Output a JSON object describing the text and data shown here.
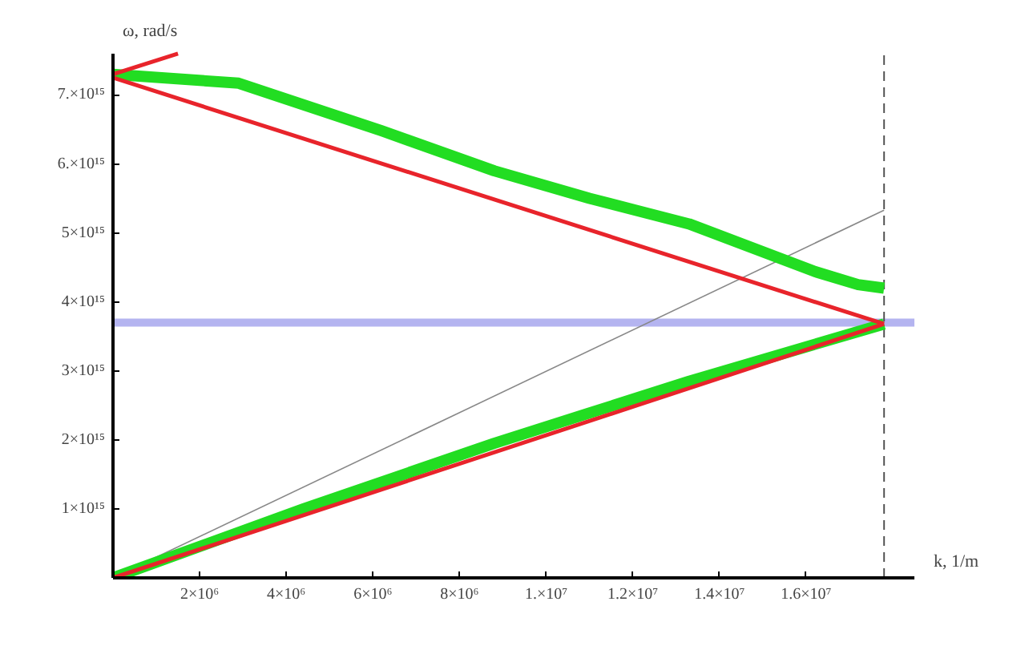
{
  "chart_data": {
    "type": "line",
    "xlabel": "k, 1/m",
    "ylabel": "ω, rad/s",
    "xlim": [
      0,
      18500000
    ],
    "ylim": [
      0,
      7600000000000000.0
    ],
    "xticks": [
      {
        "value": 2000000,
        "label": "2×10⁶"
      },
      {
        "value": 4000000,
        "label": "4×10⁶"
      },
      {
        "value": 6000000,
        "label": "6×10⁶"
      },
      {
        "value": 8000000,
        "label": "8×10⁶"
      },
      {
        "value": 10000000,
        "label": "1.×10⁷"
      },
      {
        "value": 12000000,
        "label": "1.2×10⁷"
      },
      {
        "value": 14000000,
        "label": "1.4×10⁷"
      },
      {
        "value": 16000000,
        "label": "1.6×10⁷"
      }
    ],
    "yticks": [
      {
        "value": 1000000000000000.0,
        "label": "1×10¹⁵"
      },
      {
        "value": 2000000000000000.0,
        "label": "2×10¹⁵"
      },
      {
        "value": 3000000000000000.0,
        "label": "3×10¹⁵"
      },
      {
        "value": 4000000000000000.0,
        "label": "4×10¹⁵"
      },
      {
        "value": 5000000000000000.0,
        "label": "5×10¹⁵"
      },
      {
        "value": 6000000000000000.0,
        "label": "6.×10¹⁵"
      },
      {
        "value": 7000000000000000.0,
        "label": "7.×10¹⁵"
      }
    ],
    "grid": false,
    "series": [
      {
        "color": "#888888",
        "x": [
          0,
          17800000
        ],
        "values": [
          0,
          5330000000000000.0
        ]
      },
      {
        "color": "#22dd22",
        "x": [
          0,
          2900000,
          6200000,
          8800000,
          11000000,
          13300000,
          16200000,
          17200000,
          17800000
        ],
        "values": [
          7300000000000000.0,
          7170000000000000.0,
          6480000000000000.0,
          5900000000000000.0,
          5500000000000000.0,
          5130000000000000.0,
          4440000000000000.0,
          4250000000000000.0,
          4200000000000000.0
        ]
      },
      {
        "color": "#22dd22",
        "x": [
          0,
          4400000,
          8800000,
          13300000,
          17800000
        ],
        "values": [
          0,
          1000000000000000.0,
          1950000000000000.0,
          2850000000000000.0,
          3680000000000000.0
        ]
      },
      {
        "color": "#e8242b",
        "x": [
          0,
          17800000
        ],
        "values": [
          7250000000000000.0,
          3680000000000000.0
        ]
      },
      {
        "color": "#e8242b",
        "x": [
          0,
          17800000
        ],
        "values": [
          0,
          3680000000000000.0
        ]
      },
      {
        "color": "#e8242b",
        "x": [
          0,
          1500000
        ],
        "values": [
          7300000000000000.0,
          7600000000000000.0
        ]
      }
    ],
    "ref_lines": [
      {
        "axis": "y",
        "value": 3700000000000000.0,
        "color": "#b4b4f0",
        "line_style": "solid"
      },
      {
        "axis": "x",
        "value": 17800000,
        "color": "#555555",
        "line_style": "dashed"
      }
    ]
  }
}
